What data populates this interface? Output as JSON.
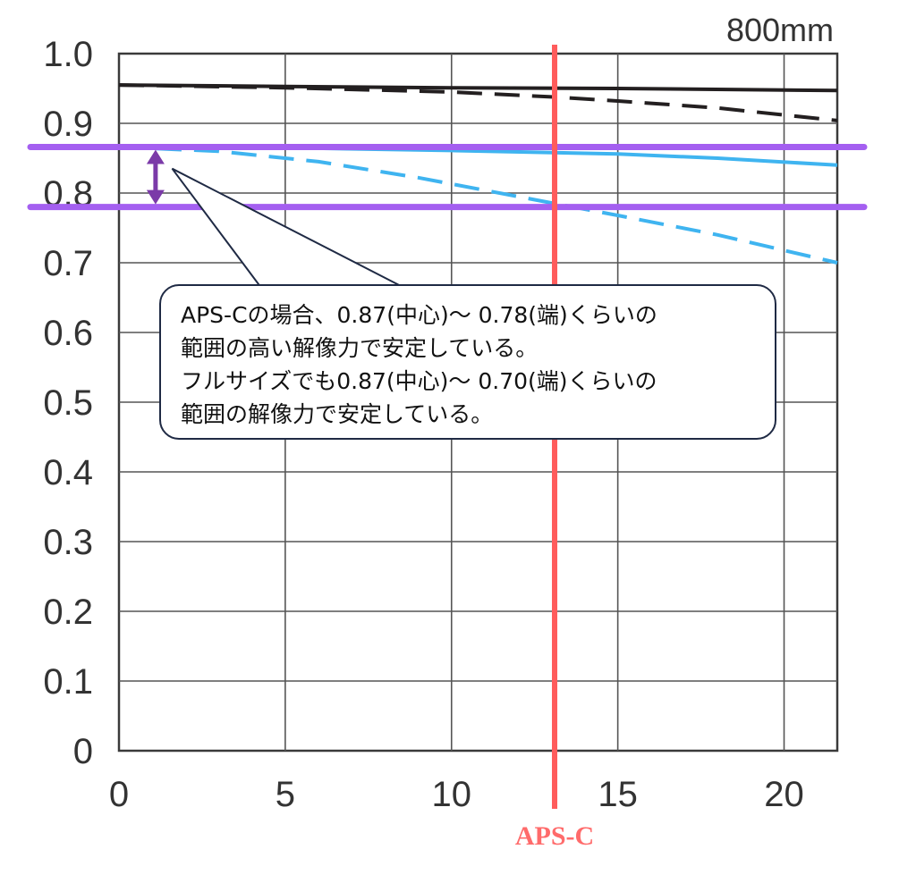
{
  "chart_data": {
    "type": "line",
    "title": "800mm",
    "xlabel": "",
    "ylabel": "",
    "xlim": [
      0,
      21.6
    ],
    "ylim": [
      0,
      1.0
    ],
    "xticks": [
      "0",
      "5",
      "10",
      "15",
      "20"
    ],
    "yticks": [
      "0",
      "0.1",
      "0.2",
      "0.3",
      "0.4",
      "0.5",
      "0.6",
      "0.7",
      "0.8",
      "0.9",
      "1.0"
    ],
    "grid": true,
    "series": [
      {
        "style": "solid",
        "color": "#231f20",
        "x": [
          0,
          5,
          10,
          15,
          21.6
        ],
        "y": [
          0.955,
          0.953,
          0.951,
          0.95,
          0.947
        ]
      },
      {
        "style": "dashed",
        "color": "#231f20",
        "x": [
          0,
          5,
          10,
          13,
          15,
          18,
          21.6
        ],
        "y": [
          0.955,
          0.951,
          0.945,
          0.938,
          0.932,
          0.922,
          0.904
        ]
      },
      {
        "style": "solid",
        "color": "#3fb4f0",
        "x": [
          0,
          5,
          10,
          15,
          18,
          21.6
        ],
        "y": [
          0.866,
          0.865,
          0.861,
          0.856,
          0.85,
          0.84
        ]
      },
      {
        "style": "dashed",
        "color": "#3fb4f0",
        "x": [
          0,
          3,
          6,
          9,
          12,
          13.1,
          15,
          18,
          21.6
        ],
        "y": [
          0.866,
          0.86,
          0.845,
          0.822,
          0.795,
          0.785,
          0.768,
          0.74,
          0.7
        ]
      }
    ],
    "reference_lines": [
      {
        "orientation": "horizontal",
        "value": 0.866,
        "color": "#a45ff0"
      },
      {
        "orientation": "horizontal",
        "value": 0.78,
        "color": "#a45ff0"
      },
      {
        "orientation": "vertical",
        "value": 13.1,
        "color": "#ff5c5c",
        "label": "APS-C"
      }
    ],
    "range_arrow": {
      "x": 1.1,
      "from": 0.866,
      "to": 0.78,
      "color": "#7b3aa8"
    },
    "annotation": {
      "lines": [
        "APS-Cの場合、0.87(中心)〜 0.78(端)くらいの",
        "範囲の高い解像力で安定している。",
        "フルサイズでも0.87(中心)〜 0.70(端)くらいの",
        "範囲の解像力で安定している。"
      ],
      "points_to": {
        "x": 1.6,
        "y": 0.835
      }
    }
  }
}
